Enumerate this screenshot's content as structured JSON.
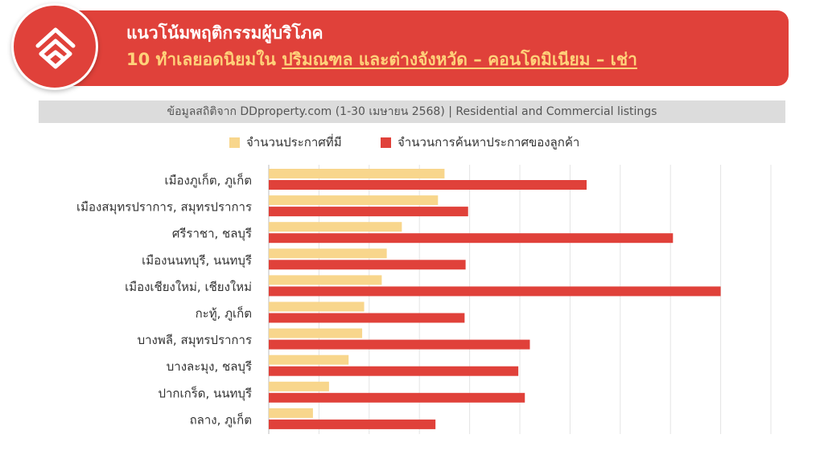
{
  "header": {
    "title_line1": "แนวโน้มพฤติกรรมผู้บริโภค",
    "title_line2_prefix": "10 ทำเลยอดนิยมใน ",
    "title_line2_highlight": "ปริมณฑล และต่างจังหวัด – คอนโดมิเนียม – เช่า",
    "logo_icon": "ddproperty-logo-icon"
  },
  "source": "ข้อมูลสถิติจาก DDproperty.com (1-30 เมษายน 2568) | Residential and Commercial listings",
  "colors": {
    "brand_red": "#e0413a",
    "listings": "#f8d68c",
    "searches": "#e0413a",
    "highlight_text": "#ffd27a"
  },
  "chart_data": {
    "type": "bar",
    "orientation": "horizontal",
    "categories": [
      "เมืองภูเก็ต, ภูเก็ต",
      "เมืองสมุทรปราการ, สมุทรปราการ",
      "ศรีราชา, ชลบุรี",
      "เมืองนนทบุรี, นนทบุรี",
      "เมืองเชียงใหม่, เชียงใหม่",
      "กะทู้, ภูเก็ต",
      "บางพลี, สมุทรปราการ",
      "บางละมุง, ชลบุรี",
      "ปากเกร็ด, นนทบุรี",
      "ถลาง, ภูเก็ต"
    ],
    "series": [
      {
        "name": "จำนวนประกาศที่มี",
        "color": "#f8d68c",
        "values": [
          3.5,
          3.37,
          2.65,
          2.35,
          2.25,
          1.9,
          1.86,
          1.59,
          1.2,
          0.88
        ]
      },
      {
        "name": "จำนวนการค้นหาประกาศของลูกค้า",
        "color": "#e0413a",
        "values": [
          6.33,
          3.97,
          8.05,
          3.92,
          9.0,
          3.9,
          5.2,
          4.97,
          5.1,
          3.32
        ]
      }
    ],
    "xlim": [
      0,
      10
    ],
    "grid": true,
    "x_tick_labels_shown": false,
    "legend_position": "top-center"
  }
}
